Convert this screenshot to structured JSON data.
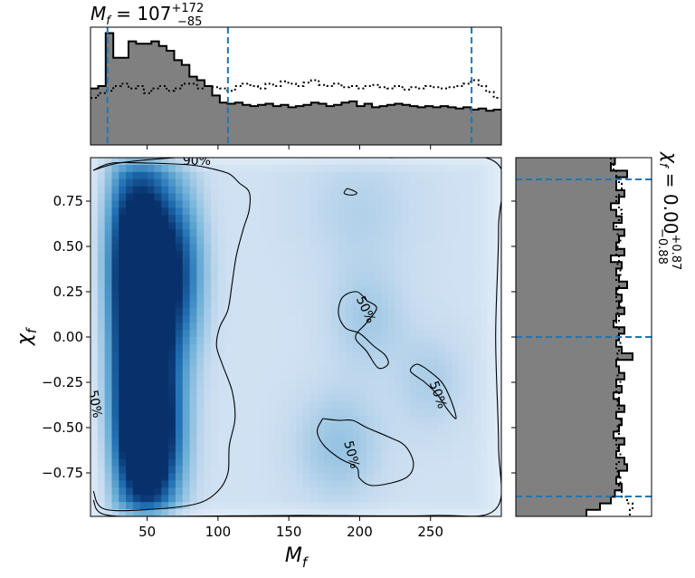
{
  "chart_data": [
    {
      "type": "histogram",
      "panel": "top-marginal",
      "variable": "M_f",
      "title": {
        "symbol": "M",
        "sub": "f",
        "eq": " = ",
        "value": "107",
        "plus": "+172",
        "minus": "−85"
      },
      "xlim": [
        10,
        300
      ],
      "posterior_heights": [
        0.48,
        0.5,
        0.95,
        0.74,
        0.74,
        0.88,
        0.86,
        0.86,
        0.88,
        0.84,
        0.8,
        0.72,
        0.68,
        0.58,
        0.55,
        0.5,
        0.42,
        0.36,
        0.35,
        0.36,
        0.34,
        0.33,
        0.34,
        0.35,
        0.33,
        0.34,
        0.32,
        0.33,
        0.34,
        0.36,
        0.35,
        0.33,
        0.34,
        0.36,
        0.37,
        0.33,
        0.35,
        0.32,
        0.33,
        0.34,
        0.35,
        0.34,
        0.33,
        0.32,
        0.33,
        0.32,
        0.33,
        0.32,
        0.31,
        0.32,
        0.3,
        0.31,
        0.29,
        0.3
      ],
      "prior_heights": [
        0.4,
        0.44,
        0.46,
        0.5,
        0.52,
        0.48,
        0.5,
        0.44,
        0.48,
        0.5,
        0.46,
        0.48,
        0.52,
        0.52,
        0.48,
        0.5,
        0.49,
        0.48,
        0.46,
        0.5,
        0.52,
        0.5,
        0.48,
        0.52,
        0.5,
        0.54,
        0.52,
        0.5,
        0.53,
        0.55,
        0.51,
        0.5,
        0.52,
        0.49,
        0.5,
        0.48,
        0.5,
        0.51,
        0.49,
        0.48,
        0.5,
        0.47,
        0.49,
        0.48,
        0.5,
        0.49,
        0.48,
        0.49,
        0.5,
        0.52,
        0.55,
        0.5,
        0.45,
        0.4
      ],
      "quantile_lines": [
        22,
        107,
        279
      ]
    },
    {
      "type": "heatmap",
      "panel": "joint",
      "xlabel": {
        "symbol": "M",
        "sub": "f"
      },
      "ylabel": {
        "symbol": "χ",
        "sub": "f"
      },
      "xlim": [
        10,
        300
      ],
      "ylim": [
        -0.99,
        0.99
      ],
      "xticks": [
        50,
        100,
        150,
        200,
        250
      ],
      "yticks": [
        0.75,
        0.5,
        0.25,
        0.0,
        -0.25,
        -0.5,
        -0.75
      ],
      "xtick_labels": [
        "50",
        "100",
        "150",
        "200",
        "250"
      ],
      "ytick_labels": [
        "0.75",
        "0.50",
        "0.25",
        "0.00",
        "−0.25",
        "−0.50",
        "−0.75"
      ],
      "colormap": [
        "#f7fbff",
        "#c6dbef",
        "#6baed6",
        "#2171b5",
        "#08306b"
      ],
      "density_blobs": [
        {
          "x": 45,
          "y": 0.55,
          "sx": 18,
          "sy": 0.35,
          "w": 0.75
        },
        {
          "x": 50,
          "y": 0.0,
          "sx": 16,
          "sy": 0.45,
          "w": 0.85
        },
        {
          "x": 52,
          "y": -0.6,
          "sx": 15,
          "sy": 0.3,
          "w": 0.95
        },
        {
          "x": 75,
          "y": 0.35,
          "sx": 12,
          "sy": 0.3,
          "w": 0.4
        },
        {
          "x": 35,
          "y": -0.2,
          "sx": 12,
          "sy": 0.55,
          "w": 0.3
        },
        {
          "x": 185,
          "y": -0.6,
          "sx": 22,
          "sy": 0.22,
          "w": 0.18
        },
        {
          "x": 205,
          "y": 0.1,
          "sx": 20,
          "sy": 0.2,
          "w": 0.14
        },
        {
          "x": 250,
          "y": -0.25,
          "sx": 18,
          "sy": 0.2,
          "w": 0.12
        },
        {
          "x": 200,
          "y": 0.7,
          "sx": 30,
          "sy": 0.25,
          "w": 0.1
        }
      ],
      "contour_labels": [
        {
          "text": "90%",
          "x": 85,
          "y": 0.97,
          "angle": 0
        },
        {
          "text": "50%",
          "x": 13,
          "y": -0.37,
          "angle": 80
        },
        {
          "text": "50%",
          "x": 204,
          "y": 0.15,
          "angle": 65
        },
        {
          "text": "50%",
          "x": 255,
          "y": -0.32,
          "angle": 70
        },
        {
          "text": "50%",
          "x": 194,
          "y": -0.65,
          "angle": 75
        }
      ],
      "contours_90": [
        [
          [
            12,
            0.92
          ],
          [
            30,
            0.96
          ],
          [
            70,
            0.99
          ],
          [
            85,
            0.99
          ],
          [
            150,
            0.99
          ],
          [
            220,
            0.99
          ],
          [
            295,
            0.97
          ],
          [
            298,
            0.6
          ],
          [
            296,
            0.0
          ],
          [
            298,
            -0.6
          ],
          [
            296,
            -0.95
          ],
          [
            250,
            -0.985
          ],
          [
            150,
            -0.985
          ],
          [
            60,
            -0.99
          ],
          [
            20,
            -0.98
          ],
          [
            12,
            -0.9
          ]
        ],
        [
          [
            12,
            0.92
          ],
          [
            25,
            0.96
          ],
          [
            50,
            0.96
          ],
          [
            80,
            0.95
          ],
          [
            95,
            0.93
          ],
          [
            108,
            0.9
          ],
          [
            115,
            0.85
          ],
          [
            122,
            0.8
          ],
          [
            122,
            0.7
          ],
          [
            118,
            0.6
          ],
          [
            113,
            0.45
          ],
          [
            110,
            0.3
          ],
          [
            107,
            0.15
          ],
          [
            101,
            0.05
          ],
          [
            99,
            -0.05
          ],
          [
            103,
            -0.15
          ],
          [
            110,
            -0.3
          ],
          [
            112,
            -0.45
          ],
          [
            108,
            -0.6
          ],
          [
            107,
            -0.75
          ],
          [
            100,
            -0.85
          ],
          [
            85,
            -0.92
          ],
          [
            55,
            -0.95
          ],
          [
            20,
            -0.95
          ],
          [
            12,
            -0.85
          ]
        ],
        [
          [
            191,
            0.82
          ],
          [
            195,
            0.81
          ],
          [
            198,
            0.795
          ],
          [
            196,
            0.785
          ],
          [
            192,
            0.785
          ],
          [
            189,
            0.795
          ],
          [
            191,
            0.82
          ]
        ]
      ],
      "contours_50": [
        [
          [
            205,
            0.2
          ],
          [
            198,
            0.25
          ],
          [
            188,
            0.22
          ],
          [
            185,
            0.13
          ],
          [
            190,
            0.05
          ],
          [
            200,
            0.02
          ],
          [
            210,
            -0.05
          ],
          [
            218,
            -0.1
          ],
          [
            220,
            -0.15
          ],
          [
            213,
            -0.17
          ],
          [
            205,
            -0.08
          ],
          [
            197,
            0.0
          ],
          [
            205,
            0.08
          ],
          [
            212,
            0.16
          ],
          [
            205,
            0.2
          ]
        ],
        [
          [
            174,
            -0.45
          ],
          [
            185,
            -0.46
          ],
          [
            195,
            -0.46
          ],
          [
            205,
            -0.5
          ],
          [
            220,
            -0.55
          ],
          [
            232,
            -0.6
          ],
          [
            238,
            -0.7
          ],
          [
            232,
            -0.78
          ],
          [
            210,
            -0.82
          ],
          [
            200,
            -0.78
          ],
          [
            198,
            -0.72
          ],
          [
            186,
            -0.67
          ],
          [
            175,
            -0.6
          ],
          [
            170,
            -0.52
          ],
          [
            174,
            -0.45
          ]
        ],
        [
          [
            246,
            -0.17
          ],
          [
            240,
            -0.15
          ],
          [
            236,
            -0.19
          ],
          [
            246,
            -0.25
          ],
          [
            255,
            -0.32
          ],
          [
            262,
            -0.4
          ],
          [
            268,
            -0.45
          ],
          [
            265,
            -0.36
          ],
          [
            258,
            -0.25
          ],
          [
            246,
            -0.17
          ]
        ]
      ]
    },
    {
      "type": "histogram",
      "panel": "right-marginal",
      "variable": "χ_f",
      "title": {
        "symbol": "χ",
        "sub": "f",
        "eq": " = ",
        "value": "0.00",
        "plus": "+0.87",
        "minus": "−0.88"
      },
      "ylim": [
        -0.99,
        0.99
      ],
      "posterior_widths": [
        0.73,
        0.7,
        0.82,
        0.74,
        0.74,
        0.8,
        0.76,
        0.7,
        0.74,
        0.78,
        0.72,
        0.8,
        0.76,
        0.74,
        0.8,
        0.7,
        0.78,
        0.74,
        0.76,
        0.82,
        0.74,
        0.78,
        0.76,
        0.8,
        0.74,
        0.72,
        0.8,
        0.76,
        0.74,
        0.78,
        0.86,
        0.74,
        0.76,
        0.8,
        0.74,
        0.78,
        0.72,
        0.76,
        0.8,
        0.74,
        0.78,
        0.76,
        0.72,
        0.8,
        0.76,
        0.74,
        0.8,
        0.82,
        0.76,
        0.74,
        0.78,
        0.73,
        0.7,
        0.62,
        0.52
      ],
      "prior_widths": [
        0.7,
        0.72,
        0.74,
        0.76,
        0.78,
        0.76,
        0.74,
        0.76,
        0.78,
        0.76,
        0.74,
        0.75,
        0.77,
        0.75,
        0.74,
        0.76,
        0.75,
        0.77,
        0.74,
        0.76,
        0.75,
        0.74,
        0.77,
        0.75,
        0.76,
        0.74,
        0.76,
        0.75,
        0.77,
        0.76,
        0.75,
        0.74,
        0.76,
        0.75,
        0.77,
        0.74,
        0.76,
        0.75,
        0.76,
        0.74,
        0.77,
        0.75,
        0.76,
        0.74,
        0.75,
        0.77,
        0.76,
        0.74,
        0.75,
        0.77,
        0.76,
        0.78,
        0.82,
        0.86,
        0.84
      ],
      "quantile_lines": [
        -0.88,
        0.0,
        0.87
      ]
    }
  ]
}
